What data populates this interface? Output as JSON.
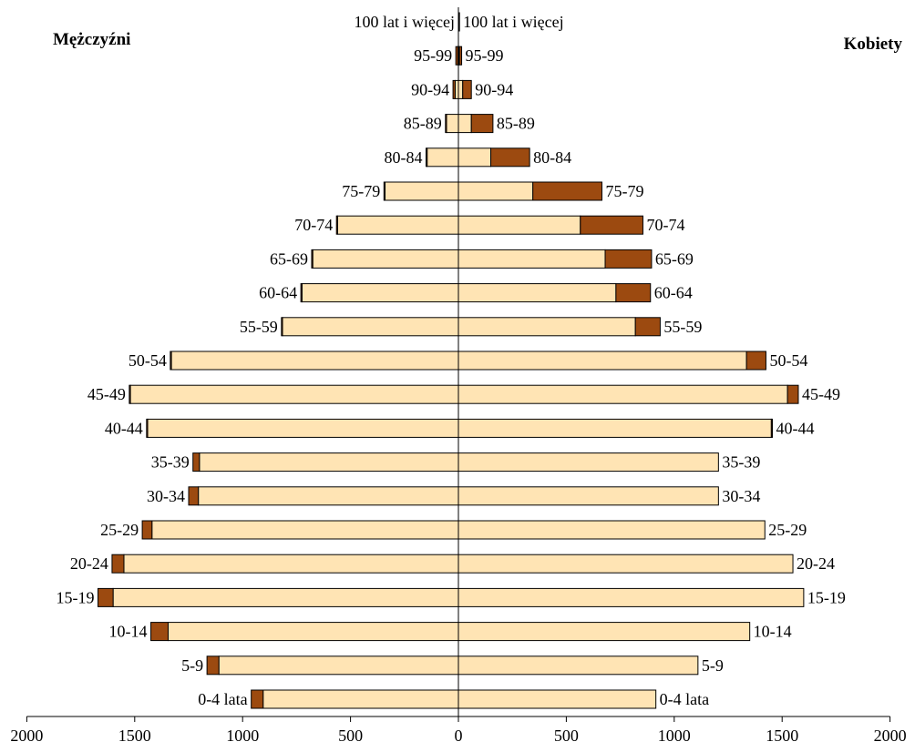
{
  "chart_data": {
    "type": "bar",
    "subtype": "population-pyramid",
    "left_title": "Mężczyźni",
    "right_title": "Kobiety",
    "categories": [
      "0-4 lata",
      "5-9",
      "10-14",
      "15-19",
      "20-24",
      "25-29",
      "30-34",
      "35-39",
      "40-44",
      "45-49",
      "50-54",
      "55-59",
      "60-64",
      "65-69",
      "70-74",
      "75-79",
      "80-84",
      "85-89",
      "90-94",
      "95-99",
      "100 lat i więcej"
    ],
    "series": [
      {
        "side": "left",
        "values": [
          905,
          1110,
          1345,
          1600,
          1550,
          1420,
          1205,
          1200,
          1440,
          1520,
          1330,
          815,
          725,
          675,
          560,
          340,
          145,
          55,
          15,
          2,
          0
        ]
      },
      {
        "side": "left",
        "values": [
          55,
          55,
          80,
          70,
          55,
          45,
          45,
          30,
          5,
          5,
          5,
          5,
          5,
          5,
          5,
          5,
          5,
          5,
          10,
          10,
          0
        ]
      },
      {
        "side": "right",
        "values": [
          915,
          1110,
          1350,
          1600,
          1550,
          1420,
          1205,
          1205,
          1450,
          1525,
          1335,
          820,
          730,
          680,
          565,
          345,
          150,
          60,
          20,
          5,
          2
        ]
      },
      {
        "side": "right",
        "values": [
          0,
          0,
          0,
          0,
          0,
          0,
          0,
          0,
          5,
          50,
          90,
          115,
          160,
          215,
          290,
          320,
          180,
          100,
          40,
          10,
          3
        ]
      }
    ],
    "xlim": [
      -2000,
      2000
    ],
    "xticks": [
      2000,
      1500,
      1000,
      500,
      0,
      500,
      1000,
      1500,
      2000
    ],
    "colors": {
      "base": "#FFE4B4",
      "overlay": "#9C4A10",
      "outline": "#000000"
    },
    "grid": false,
    "legend": "none"
  }
}
